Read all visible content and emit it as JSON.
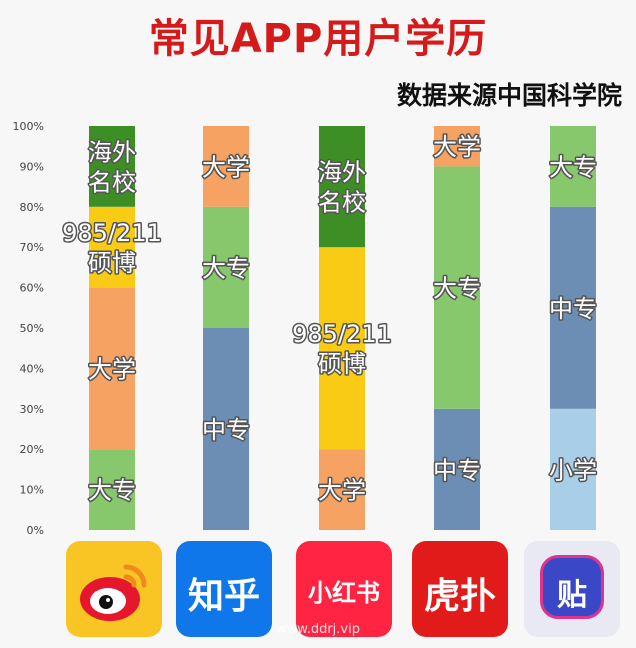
{
  "header": {
    "title": "常见APP用户学历",
    "subtitle": "数据来源中国科学院"
  },
  "watermark": "www.ddrj.vip",
  "colors": {
    "小学": "#a9cfe8",
    "中专": "#6c8eb5",
    "大专": "#88c86c",
    "大学": "#f5a262",
    "985/211硕博": "#f9cb14",
    "海外名校": "#3d8f25",
    "weibo_red": "#e6162d",
    "zhihu_blue": "#1077ea",
    "xhs_red": "#ff2442",
    "hupu_red": "#e11a1a",
    "tieba_blue": "#3a48c8"
  },
  "icons": [
    {
      "name": "weibo-icon",
      "text": ""
    },
    {
      "name": "zhihu-icon",
      "text": "知乎"
    },
    {
      "name": "xiaohongshu-icon",
      "text": "小红书"
    },
    {
      "name": "hupu-icon",
      "text": "虎扑"
    },
    {
      "name": "tieba-icon",
      "text": "贴"
    }
  ],
  "chart_data": {
    "type": "bar",
    "stacked": true,
    "title": "常见APP用户学历",
    "subtitle": "数据来源中国科学院",
    "ylim": [
      0,
      100
    ],
    "y_ticks": [
      "0%",
      "10%",
      "20%",
      "30%",
      "40%",
      "50%",
      "60%",
      "70%",
      "80%",
      "90%",
      "100%"
    ],
    "grid": false,
    "apps": [
      {
        "icon": "weibo-icon",
        "segments": [
          {
            "category": "大专",
            "label": "大专",
            "value": 20
          },
          {
            "category": "大学",
            "label": "大学",
            "value": 40
          },
          {
            "category": "985/211硕博",
            "label": "985/211\n硕博",
            "value": 20
          },
          {
            "category": "海外名校",
            "label": "海外\n名校",
            "value": 20
          }
        ]
      },
      {
        "icon": "zhihu-icon",
        "segments": [
          {
            "category": "中专",
            "label": "中专",
            "value": 50
          },
          {
            "category": "大专",
            "label": "大专",
            "value": 30
          },
          {
            "category": "大学",
            "label": "大学",
            "value": 20
          }
        ]
      },
      {
        "icon": "xiaohongshu-icon",
        "segments": [
          {
            "category": "大学",
            "label": "大学",
            "value": 20
          },
          {
            "category": "985/211硕博",
            "label": "985/211\n硕博",
            "value": 50
          },
          {
            "category": "海外名校",
            "label": "海外\n名校",
            "value": 30
          }
        ]
      },
      {
        "icon": "hupu-icon",
        "segments": [
          {
            "category": "中专",
            "label": "中专",
            "value": 30
          },
          {
            "category": "大专",
            "label": "大专",
            "value": 60
          },
          {
            "category": "大学",
            "label": "大学",
            "value": 10
          }
        ]
      },
      {
        "icon": "tieba-icon",
        "segments": [
          {
            "category": "小学",
            "label": "小学",
            "value": 30
          },
          {
            "category": "中专",
            "label": "中专",
            "value": 50
          },
          {
            "category": "大专",
            "label": "大专",
            "value": 20
          }
        ]
      }
    ]
  }
}
